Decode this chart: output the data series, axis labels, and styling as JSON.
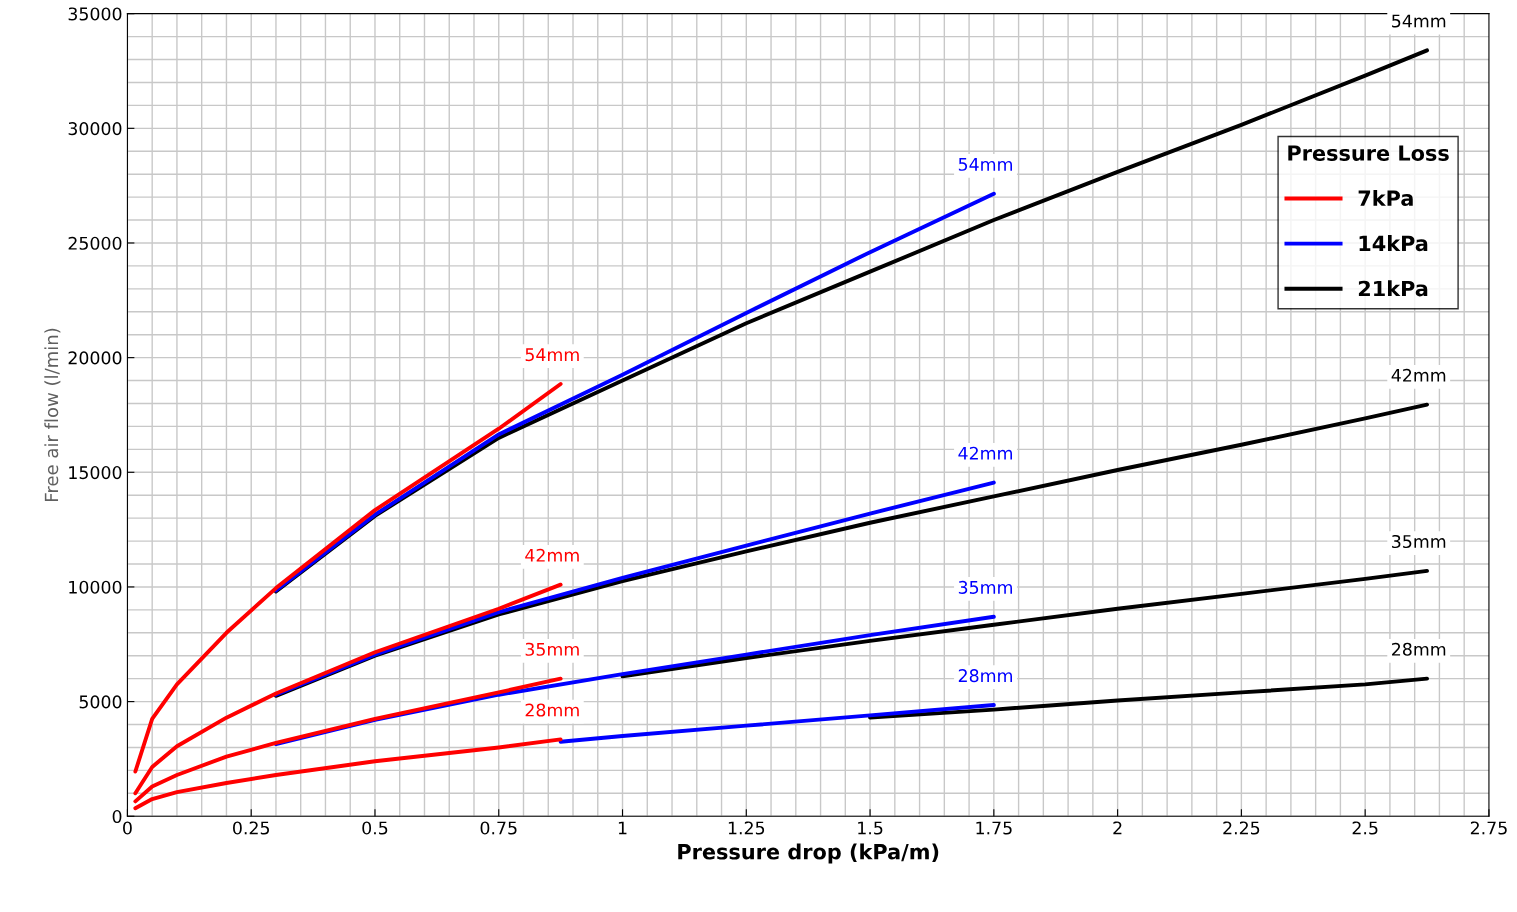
{
  "chart_data": {
    "type": "line",
    "xlabel": "Pressure drop (kPa/m)",
    "ylabel": "Free air flow (l/min)",
    "legend_title": "Pressure Loss",
    "xlim": [
      0,
      2.75
    ],
    "xticks": [
      0,
      0.25,
      0.5,
      0.75,
      1,
      1.25,
      1.5,
      1.75,
      2,
      2.25,
      2.5,
      2.75
    ],
    "ylim": [
      0,
      35000
    ],
    "yticks": [
      0,
      5000,
      10000,
      15000,
      20000,
      25000,
      30000,
      35000
    ],
    "grid": true,
    "legend": "top right",
    "marker": "none",
    "line_style": "solid",
    "series": [
      {
        "name": "7kPa",
        "color": "#ff0000",
        "x": [
          0.016,
          0.05,
          0.1,
          0.2,
          0.3,
          0.5,
          0.75,
          0.875
        ],
        "values": [
          1950,
          4250,
          5750,
          8000,
          9950,
          13350,
          16900,
          18850
        ]
      },
      {
        "color": "#ff0000",
        "x": [
          0.016,
          0.05,
          0.1,
          0.2,
          0.3,
          0.5,
          0.75,
          0.875
        ],
        "values": [
          1000,
          2150,
          3050,
          4300,
          5350,
          7150,
          9050,
          10100
        ]
      },
      {
        "color": "#ff0000",
        "x": [
          0.016,
          0.05,
          0.1,
          0.2,
          0.3,
          0.5,
          0.75,
          0.875
        ],
        "values": [
          650,
          1300,
          1800,
          2600,
          3200,
          4250,
          5400,
          6000
        ]
      },
      {
        "color": "#ff0000",
        "x": [
          0.016,
          0.05,
          0.1,
          0.2,
          0.3,
          0.5,
          0.75,
          0.875
        ],
        "values": [
          350,
          750,
          1050,
          1450,
          1800,
          2400,
          3000,
          3350
        ]
      },
      {
        "name": "14kPa",
        "color": "#0000ff",
        "x": [
          0.3,
          0.5,
          0.75,
          1,
          1.25,
          1.5,
          1.75
        ],
        "values": [
          9850,
          13150,
          16650,
          19250,
          21950,
          24600,
          27150
        ]
      },
      {
        "color": "#0000ff",
        "x": [
          0.3,
          0.5,
          0.75,
          1,
          1.25,
          1.5,
          1.75
        ],
        "values": [
          5300,
          7050,
          8900,
          10400,
          11800,
          13200,
          14550
        ]
      },
      {
        "color": "#0000ff",
        "x": [
          0.3,
          0.5,
          0.75,
          1,
          1.25,
          1.5,
          1.75
        ],
        "values": [
          3150,
          4200,
          5300,
          6200,
          7050,
          7900,
          8700
        ]
      },
      {
        "color": "#0000ff",
        "x": [
          0.875,
          1,
          1.25,
          1.5,
          1.75
        ],
        "values": [
          3250,
          3500,
          3950,
          4400,
          4850
        ]
      },
      {
        "name": "21kPa",
        "color": "#000000",
        "x": [
          0.3,
          0.5,
          0.75,
          1,
          1.25,
          1.5,
          1.75,
          2,
          2.25,
          2.5,
          2.625
        ],
        "values": [
          9800,
          13100,
          16500,
          19000,
          21500,
          23750,
          26000,
          28100,
          30150,
          32300,
          33400
        ]
      },
      {
        "color": "#000000",
        "x": [
          0.3,
          0.5,
          0.75,
          1,
          1.25,
          1.5,
          1.75,
          2,
          2.25,
          2.5,
          2.625
        ],
        "values": [
          5250,
          7000,
          8800,
          10250,
          11550,
          12800,
          13950,
          15100,
          16200,
          17350,
          17950
        ]
      },
      {
        "color": "#000000",
        "x": [
          1,
          1.25,
          1.5,
          1.75,
          2,
          2.25,
          2.5,
          2.625
        ],
        "values": [
          6100,
          6900,
          7650,
          8350,
          9050,
          9700,
          10350,
          10700
        ]
      },
      {
        "color": "#000000",
        "x": [
          1.5,
          1.75,
          2,
          2.25,
          2.5,
          2.625
        ],
        "values": [
          4300,
          4650,
          5050,
          5400,
          5750,
          6000
        ]
      }
    ],
    "annotations": [
      {
        "text": "54mm",
        "x": 0.875,
        "y": 18850
      },
      {
        "text": "42mm",
        "x": 0.875,
        "y": 10100
      },
      {
        "text": "35mm",
        "x": 0.875,
        "y": 6000
      },
      {
        "text": "28mm",
        "x": 0.875,
        "y": 3350
      },
      {
        "text": "54mm",
        "x": 1.75,
        "y": 27150
      },
      {
        "text": "42mm",
        "x": 1.75,
        "y": 14550
      },
      {
        "text": "35mm",
        "x": 1.75,
        "y": 8700
      },
      {
        "text": "28mm",
        "x": 1.75,
        "y": 4850
      },
      {
        "text": "54mm",
        "x": 2.625,
        "y": 33400
      },
      {
        "text": "42mm",
        "x": 2.625,
        "y": 17950
      },
      {
        "text": "35mm",
        "x": 2.625,
        "y": 10700
      },
      {
        "text": "28mm",
        "x": 2.625,
        "y": 6000
      }
    ]
  }
}
